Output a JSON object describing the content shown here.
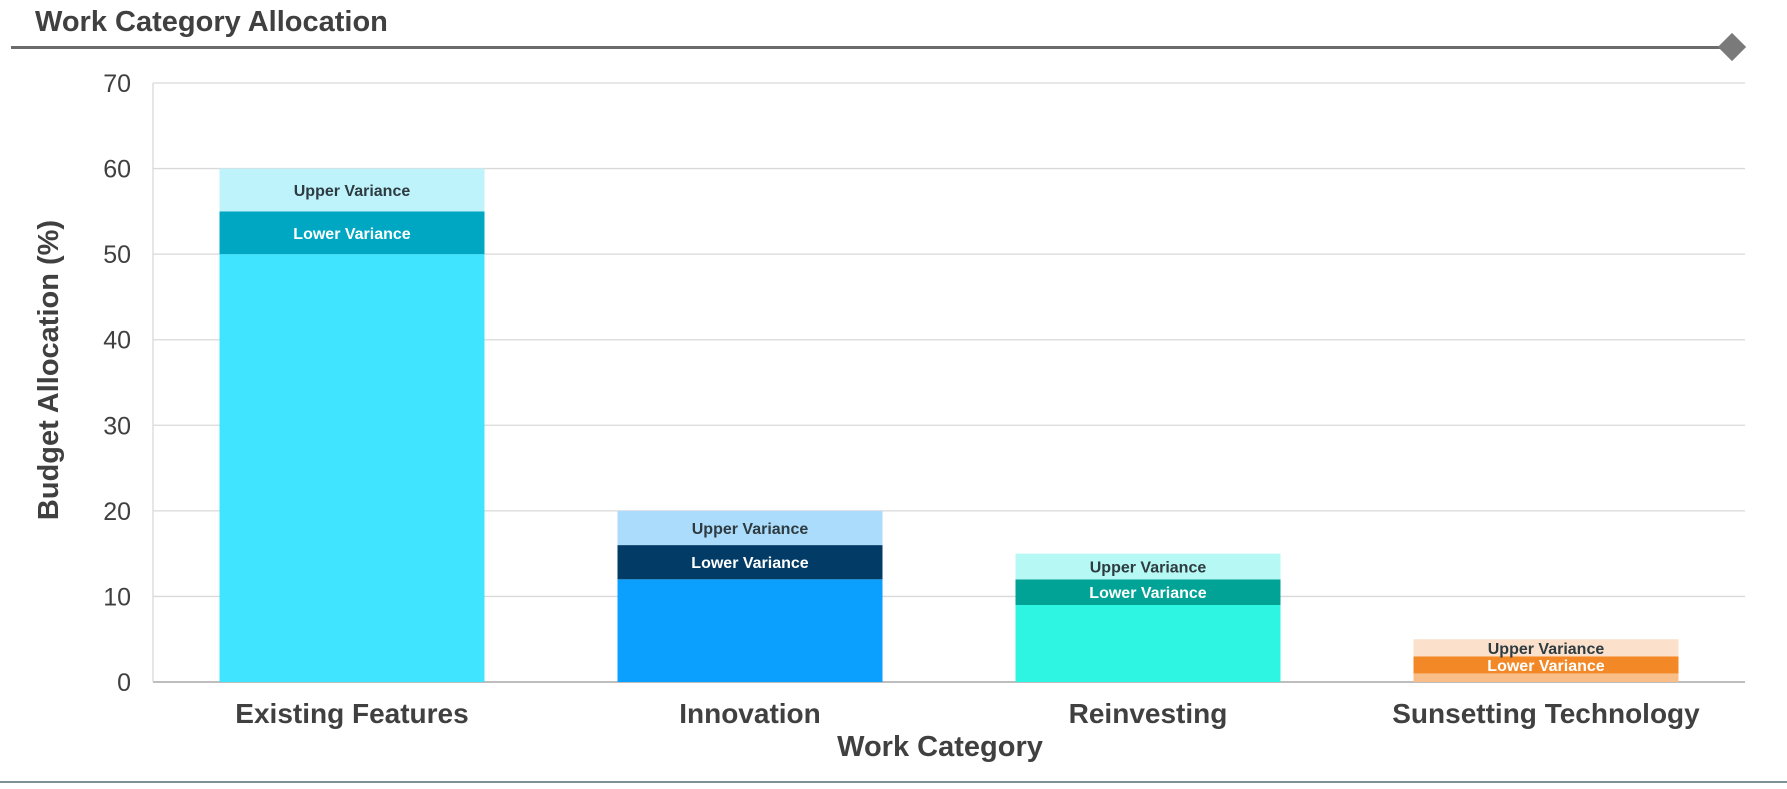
{
  "title": "Work Category Allocation",
  "chart_data": {
    "type": "bar",
    "stacked": true,
    "categories": [
      "Existing Features",
      "Innovation",
      "Reinvesting",
      "Sunsetting Technology"
    ],
    "series": [
      {
        "role": "base",
        "values": [
          50,
          12,
          9,
          1
        ]
      },
      {
        "name": "Lower Variance",
        "values": [
          5,
          4,
          3,
          2
        ]
      },
      {
        "name": "Upper Variance",
        "values": [
          5,
          4,
          3,
          2
        ]
      }
    ],
    "colors": {
      "base": [
        "#41e4fe",
        "#0ba0fe",
        "#2ef5e1",
        "#f9bd88"
      ],
      "lower": [
        "#00a7c2",
        "#023b65",
        "#00a396",
        "#f38826"
      ],
      "upper": [
        "#bef3fc",
        "#abdcfc",
        "#b6f9f4",
        "#fbe1cb"
      ],
      "lower_text": [
        "#ffffff",
        "#ffffff",
        "#ffffff",
        "#ffffff"
      ],
      "upper_text": [
        "#2e3b40",
        "#2e3b40",
        "#2e3b40",
        "#2e3b40"
      ]
    },
    "xlabel": "Work Category",
    "ylabel": "Budget Allocation (%)",
    "ylim": [
      0,
      70
    ],
    "yticks": [
      0,
      10,
      20,
      30,
      40,
      50,
      60,
      70
    ],
    "grid": true
  }
}
